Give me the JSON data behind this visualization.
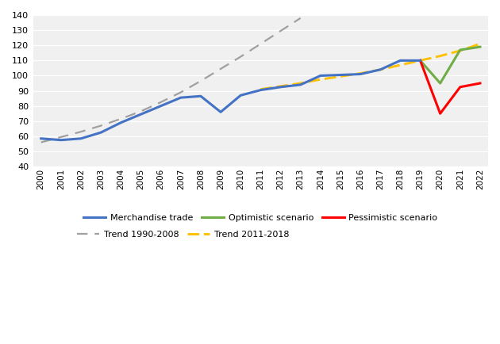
{
  "merchandise_trade": {
    "years": [
      2000,
      2001,
      2002,
      2003,
      2004,
      2005,
      2006,
      2007,
      2008,
      2009,
      2010,
      2011,
      2012,
      2013,
      2014,
      2015,
      2016,
      2017,
      2018,
      2019
    ],
    "values": [
      58.5,
      57.5,
      58.5,
      62.5,
      69.0,
      74.5,
      80.0,
      85.5,
      86.5,
      76.0,
      87.0,
      90.5,
      92.5,
      94.0,
      100.0,
      100.5,
      101.0,
      104.0,
      110.0,
      110.0
    ]
  },
  "optimistic": {
    "years": [
      2019,
      2020,
      2021,
      2022
    ],
    "values": [
      110.0,
      95.0,
      117.0,
      119.0
    ]
  },
  "pessimistic": {
    "years": [
      2019,
      2020,
      2021,
      2022
    ],
    "values": [
      110.0,
      75.0,
      92.5,
      95.0
    ]
  },
  "trend_1990_2008": {
    "years": [
      2000,
      2001,
      2002,
      2003,
      2004,
      2005,
      2006,
      2007,
      2008,
      2009,
      2010,
      2011,
      2012,
      2013
    ],
    "values": [
      56.0,
      59.5,
      63.0,
      67.0,
      71.5,
      76.5,
      82.5,
      89.0,
      96.5,
      104.5,
      112.5,
      121.0,
      129.5,
      138.0
    ]
  },
  "trend_2011_2018": {
    "years": [
      2011,
      2012,
      2013,
      2014,
      2015,
      2016,
      2017,
      2018,
      2019,
      2020,
      2021,
      2022
    ],
    "values": [
      91.0,
      93.0,
      95.0,
      97.5,
      99.5,
      101.5,
      104.0,
      107.0,
      110.0,
      113.0,
      116.5,
      121.0
    ]
  },
  "colors": {
    "merchandise_trade": "#4472C4",
    "optimistic": "#70AD47",
    "pessimistic": "#FF0000",
    "trend_1990_2008": "#A0A0A0",
    "trend_2011_2018": "#FFC000"
  },
  "ylim": [
    40,
    140
  ],
  "yticks": [
    40,
    50,
    60,
    70,
    80,
    90,
    100,
    110,
    120,
    130,
    140
  ],
  "xlim_start": 2000,
  "xlim_end": 2022,
  "background_color": "#ffffff",
  "plot_bg_color": "#f0f0f0",
  "linewidth": 2.2,
  "trend_linewidth": 1.6,
  "legend_entries": [
    "Merchandise trade",
    "Optimistic scenario",
    "Pessimistic scenario",
    "Trend 1990-2008",
    "Trend 2011-2018"
  ]
}
